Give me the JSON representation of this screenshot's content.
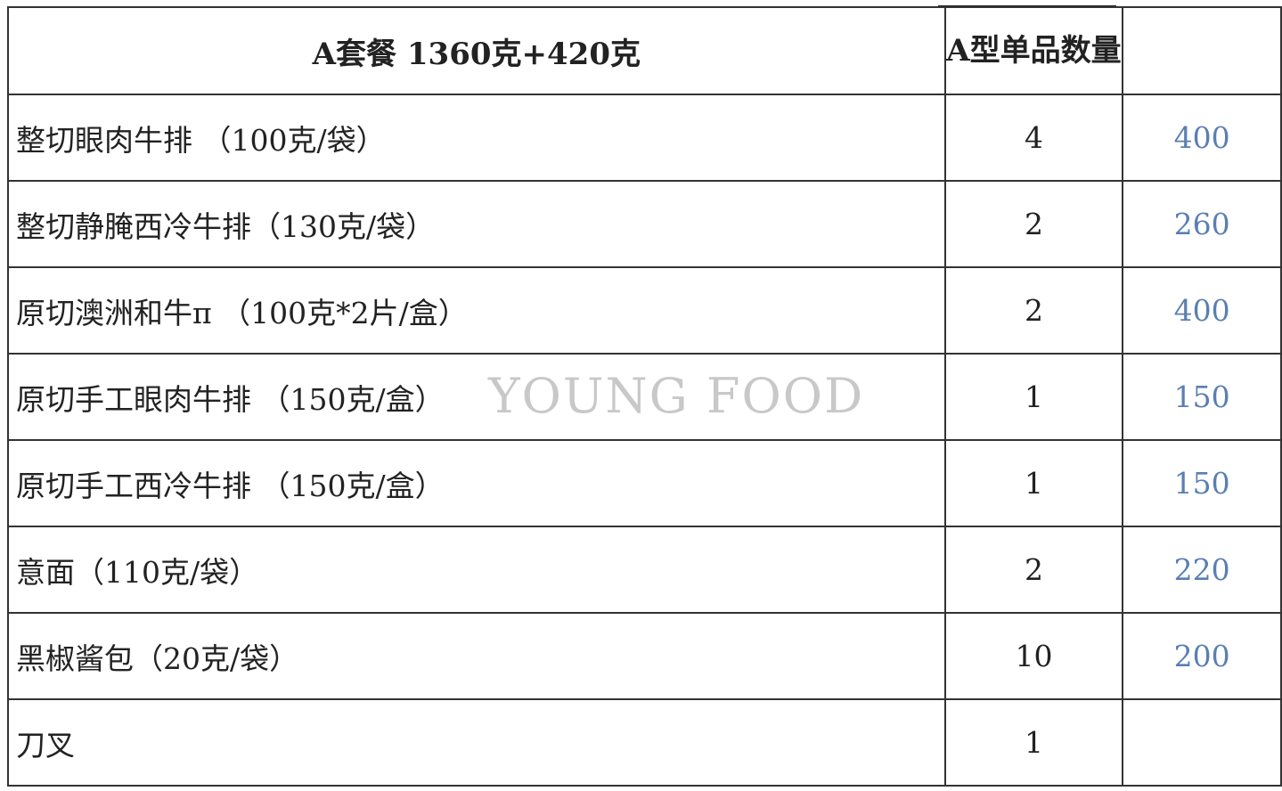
{
  "header": {
    "title": "A套餐  1360克+420克",
    "qty_header": "A型单品数量",
    "extra_header": ""
  },
  "rows": [
    {
      "item": "整切眼肉牛排  （100克/袋）",
      "qty": "4",
      "grams": "400"
    },
    {
      "item": "整切静腌西冷牛排（130克/袋）",
      "qty": "2",
      "grams": "260"
    },
    {
      "item": "原切澳洲和牛π  （100克*2片/盒）",
      "qty": "2",
      "grams": "400"
    },
    {
      "item": "原切手工眼肉牛排  （150克/盒）",
      "qty": "1",
      "grams": "150"
    },
    {
      "item": "原切手工西冷牛排  （150克/盒）",
      "qty": "1",
      "grams": "150"
    },
    {
      "item": "意面（110克/袋）",
      "qty": "2",
      "grams": "220"
    },
    {
      "item": "黑椒酱包（20克/袋）",
      "qty": "10",
      "grams": "200"
    },
    {
      "item": "刀叉",
      "qty": "1",
      "grams": ""
    }
  ],
  "watermark": "YOUNG FOOD",
  "colors": {
    "value_text": "#5a7fb2",
    "grid": "#333333"
  }
}
